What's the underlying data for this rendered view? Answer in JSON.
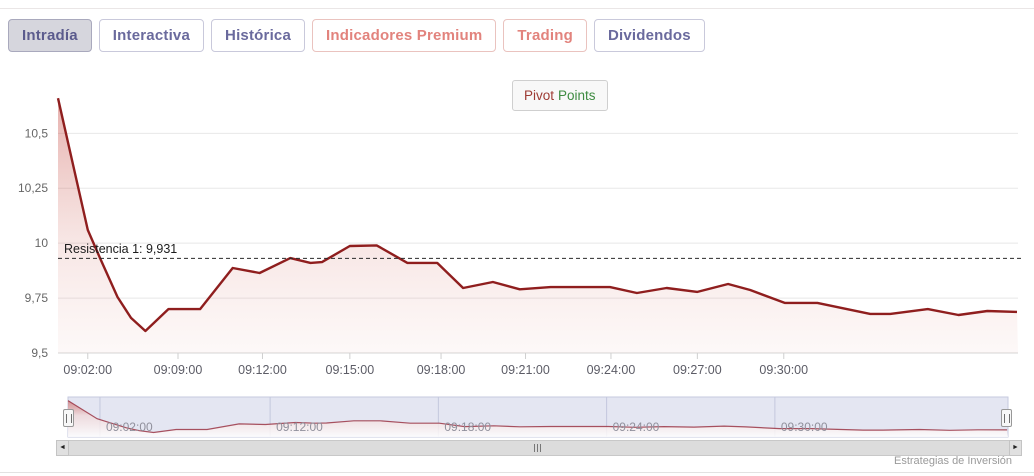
{
  "tabs": [
    {
      "label": "Intradía",
      "state": "active",
      "style": "default"
    },
    {
      "label": "Interactiva",
      "state": "normal",
      "style": "default"
    },
    {
      "label": "Histórica",
      "state": "normal",
      "style": "default"
    },
    {
      "label": "Indicadores Premium",
      "state": "normal",
      "style": "premium"
    },
    {
      "label": "Trading",
      "state": "normal",
      "style": "premium"
    },
    {
      "label": "Dividendos",
      "state": "normal",
      "style": "default"
    }
  ],
  "legend": {
    "items": [
      {
        "text": "Pivot",
        "color": "#9e3b34"
      },
      {
        "text": "Points",
        "color": "#3d8b40"
      }
    ]
  },
  "chart_data": {
    "type": "area",
    "title": "",
    "xlabel": "",
    "ylabel": "",
    "grid": "horizontal",
    "ylim": [
      9.5,
      10.72
    ],
    "yticks": [
      {
        "label": "10,5",
        "value": 10.5
      },
      {
        "label": "10,25",
        "value": 10.25
      },
      {
        "label": "10",
        "value": 10.0
      },
      {
        "label": "9,75",
        "value": 9.75
      },
      {
        "label": "9,5",
        "value": 9.5
      }
    ],
    "xticks": [
      {
        "label": "09:02:00",
        "pos": 3.1
      },
      {
        "label": "09:09:00",
        "pos": 12.5
      },
      {
        "label": "09:12:00",
        "pos": 21.3
      },
      {
        "label": "09:15:00",
        "pos": 30.4
      },
      {
        "label": "09:18:00",
        "pos": 39.9
      },
      {
        "label": "09:21:00",
        "pos": 48.7
      },
      {
        "label": "09:24:00",
        "pos": 57.6
      },
      {
        "label": "09:27:00",
        "pos": 66.6
      },
      {
        "label": "09:30:00",
        "pos": 75.6
      }
    ],
    "series": [
      {
        "name": "Pivot Points",
        "color": "#8f1e1e",
        "points": [
          [
            0,
            10.66
          ],
          [
            3.1,
            10.06
          ],
          [
            4.4,
            9.93
          ],
          [
            6.2,
            9.755
          ],
          [
            7.6,
            9.66
          ],
          [
            9.1,
            9.6
          ],
          [
            11.5,
            9.7
          ],
          [
            14.8,
            9.7
          ],
          [
            18.2,
            9.887
          ],
          [
            21,
            9.864
          ],
          [
            24.2,
            9.932
          ],
          [
            26.3,
            9.91
          ],
          [
            27.5,
            9.914
          ],
          [
            30.4,
            9.987
          ],
          [
            33.2,
            9.99
          ],
          [
            36.4,
            9.91
          ],
          [
            39.5,
            9.91
          ],
          [
            42.2,
            9.796
          ],
          [
            45.3,
            9.823
          ],
          [
            48.1,
            9.79
          ],
          [
            51.3,
            9.8
          ],
          [
            54.4,
            9.8
          ],
          [
            57.5,
            9.8
          ],
          [
            60.3,
            9.773
          ],
          [
            63.4,
            9.796
          ],
          [
            66.6,
            9.778
          ],
          [
            69.8,
            9.814
          ],
          [
            72.1,
            9.787
          ],
          [
            75.7,
            9.728
          ],
          [
            79.1,
            9.728
          ],
          [
            84.6,
            9.678
          ],
          [
            86.7,
            9.678
          ],
          [
            90.6,
            9.7
          ],
          [
            93.8,
            9.673
          ],
          [
            96.8,
            9.691
          ],
          [
            99.9,
            9.687
          ]
        ]
      }
    ],
    "annotations": [
      {
        "type": "resistance",
        "label": "Resistencia 1: 9,931",
        "value": 9.931,
        "line_style": "dashed",
        "color": "#2b2b2b"
      }
    ],
    "navigator": {
      "selected_range": "full",
      "xticks": [
        {
          "label": "09:02:00",
          "pos": 3.4
        },
        {
          "label": "09:12:00",
          "pos": 21.5
        },
        {
          "label": "09:18:00",
          "pos": 39.4
        },
        {
          "label": "09:24:00",
          "pos": 57.3
        },
        {
          "label": "09:30:00",
          "pos": 75.2
        }
      ]
    }
  },
  "scrollbar": {
    "left_arrow": "◄",
    "right_arrow": "►"
  },
  "credits": {
    "text": "Estrategias de Inversión"
  },
  "colors": {
    "series_line": "#8f1e1e",
    "navigator_background": "#e4e6f2",
    "gridline": "#e8e8e8",
    "axis_label": "#666666",
    "tab_text": "#6a6a9d",
    "tab_premium_text": "#e2837d",
    "resistance_line": "#2b2b2b"
  }
}
